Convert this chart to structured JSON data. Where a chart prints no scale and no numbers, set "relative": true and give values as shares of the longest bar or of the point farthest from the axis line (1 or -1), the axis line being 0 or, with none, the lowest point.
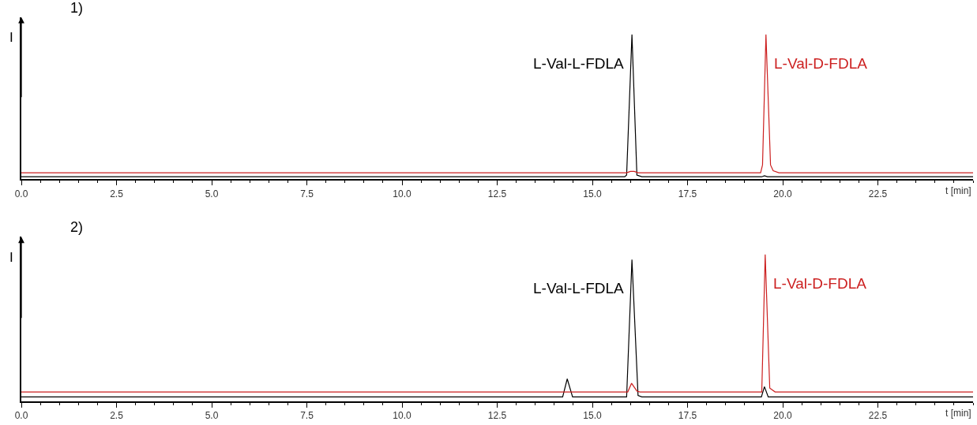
{
  "chart_data": [
    {
      "type": "line",
      "title": "1)",
      "xlabel": "t [min]",
      "ylabel": "I",
      "relative": true,
      "xlim": [
        0,
        25
      ],
      "xticks": [
        {
          "value": 0,
          "label": "0.0"
        },
        2.5,
        {
          "value": 5,
          "label": "5.0"
        },
        7.5,
        {
          "value": 10,
          "label": "10.0"
        },
        12.5,
        {
          "value": 15,
          "label": "15.0"
        },
        17.5,
        {
          "value": 20,
          "label": "20.0"
        },
        22.5
      ],
      "tick_labels": "x",
      "marker": "none",
      "line_style": "solid",
      "series": [
        {
          "name": "L-Val-L-FDLA",
          "color": "#000000",
          "x": [
            0,
            15.85,
            15.9,
            16.04,
            16.17,
            16.22,
            16.3,
            19.45,
            19.52,
            19.6,
            25
          ],
          "values": [
            0.018,
            0.018,
            0.03,
            1,
            0.03,
            0.025,
            0.018,
            0.018,
            0.025,
            0.018,
            0.018
          ]
        },
        {
          "name": "L-Val-D-FDLA",
          "color": "#cc1f1f",
          "x": [
            0,
            15.9,
            16.0,
            16.1,
            16.2,
            19.42,
            19.47,
            19.56,
            19.68,
            19.75,
            19.9,
            25
          ],
          "values": [
            0.046,
            0.046,
            0.055,
            0.055,
            0.046,
            0.046,
            0.1,
            1,
            0.1,
            0.06,
            0.046,
            0.046
          ]
        }
      ]
    },
    {
      "type": "line",
      "title": "2)",
      "xlabel": "t [min]",
      "ylabel": "I",
      "relative": true,
      "xlim": [
        0,
        25
      ],
      "xticks": [
        {
          "value": 0,
          "label": "0.0"
        },
        2.5,
        {
          "value": 5,
          "label": "5.0"
        },
        7.5,
        {
          "value": 10,
          "label": "10.0"
        },
        12.5,
        {
          "value": 15,
          "label": "15.0"
        },
        17.5,
        {
          "value": 20,
          "label": "20.0"
        },
        22.5
      ],
      "tick_labels": "x",
      "marker": "none",
      "line_style": "solid",
      "series": [
        {
          "name": "L-Val-L-FDLA",
          "color": "#000000",
          "x": [
            0,
            14.22,
            14.34,
            14.48,
            15.9,
            16.04,
            16.2,
            16.3,
            19.44,
            19.52,
            19.62,
            25
          ],
          "values": [
            0.03,
            0.03,
            0.153,
            0.03,
            0.03,
            0.965,
            0.04,
            0.03,
            0.03,
            0.1,
            0.03,
            0.03
          ]
        },
        {
          "name": "L-Val-D-FDLA",
          "color": "#cc1f1f",
          "x": [
            0,
            15.93,
            16.03,
            16.17,
            16.25,
            19.45,
            19.54,
            19.66,
            19.8,
            25
          ],
          "values": [
            0.064,
            0.064,
            0.123,
            0.07,
            0.064,
            0.064,
            1,
            0.09,
            0.064,
            0.064
          ]
        }
      ]
    }
  ]
}
